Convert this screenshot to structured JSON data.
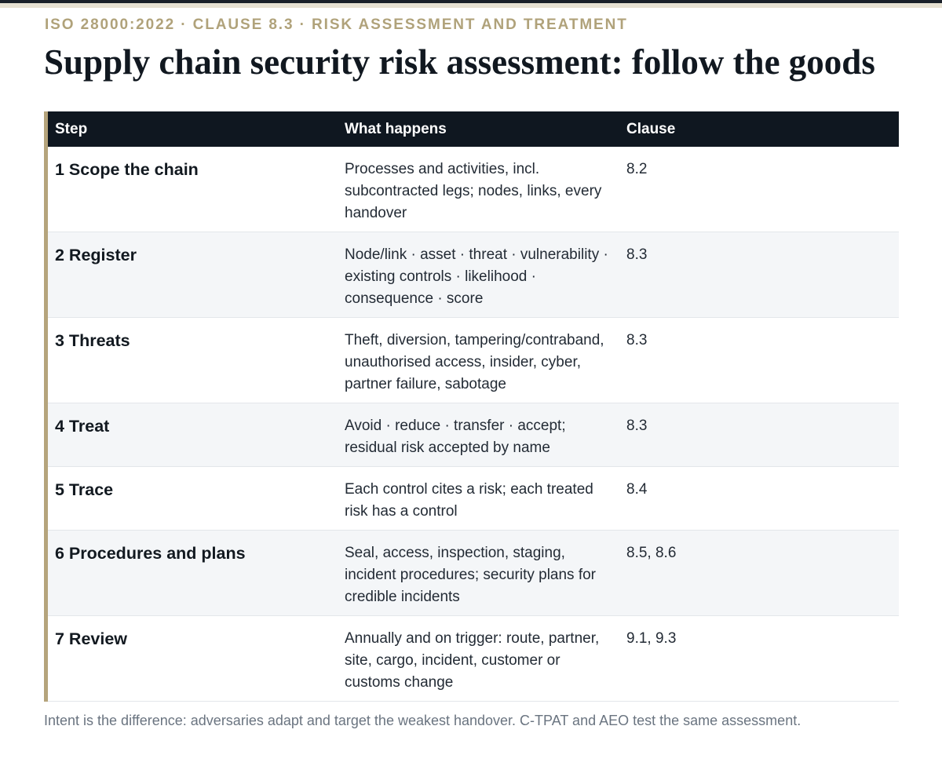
{
  "header": {
    "kicker": "ISO 28000:2022 · CLAUSE 8.3 · RISK ASSESSMENT AND TREATMENT",
    "title": "Supply chain security risk assessment: follow the goods"
  },
  "table": {
    "columns": [
      "Step",
      "What happens",
      "Clause"
    ],
    "rows": [
      {
        "step": "1 Scope the chain",
        "what": "Processes and activities, incl. subcontracted legs; nodes, links, every handover",
        "clause": "8.2"
      },
      {
        "step": "2 Register",
        "what": "Node/link · asset · threat · vulnerability · existing controls · likelihood · consequence · score",
        "clause": "8.3"
      },
      {
        "step": "3 Threats",
        "what": "Theft, diversion, tampering/contraband, unauthorised access, insider, cyber, partner failure, sabotage",
        "clause": "8.3"
      },
      {
        "step": "4 Treat",
        "what": "Avoid · reduce · transfer · accept; residual risk accepted by name",
        "clause": "8.3"
      },
      {
        "step": "5 Trace",
        "what": "Each control cites a risk; each treated risk has a control",
        "clause": "8.4"
      },
      {
        "step": "6 Procedures and plans",
        "what": "Seal, access, inspection, staging, incident procedures; security plans for credible incidents",
        "clause": "8.5, 8.6"
      },
      {
        "step": "7 Review",
        "what": "Annually and on trigger: route, partner, site, cargo, incident, customer or customs change",
        "clause": "9.1, 9.3"
      }
    ]
  },
  "footnote": "Intent is the difference: adversaries adapt and target the weakest handover. C-TPAT and AEO test the same assessment.",
  "colors": {
    "accent_gold": "#b5a47c",
    "header_dark": "#0f1720",
    "row_alt": "#f4f6f8"
  }
}
